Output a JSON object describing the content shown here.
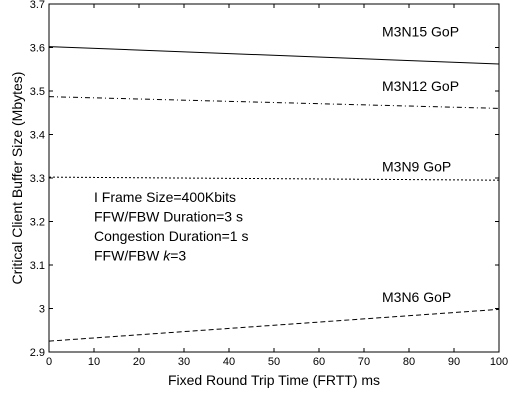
{
  "chart_data": {
    "type": "line",
    "title": "",
    "xlabel": "Fixed Round Trip Time (FRTT) ms",
    "ylabel": "Critical Client Buffer Size (Mbytes)",
    "xlim": [
      0,
      100
    ],
    "ylim": [
      2.9,
      3.7
    ],
    "xticks": [
      0,
      10,
      20,
      30,
      40,
      50,
      60,
      70,
      80,
      90,
      100
    ],
    "yticks": [
      2.9,
      3,
      3.1,
      3.2,
      3.3,
      3.4,
      3.5,
      3.6,
      3.7
    ],
    "ytick_labels": [
      "2.9",
      "3",
      "3.1",
      "3.2",
      "3.3",
      "3.4",
      "3.5",
      "3.6",
      "3.7"
    ],
    "grid": false,
    "legend": "none",
    "series": [
      {
        "name": "M3N15 GoP",
        "style": "solid",
        "x": [
          0,
          100
        ],
        "y": [
          3.602,
          3.562
        ],
        "label_x": 74,
        "label_y": 3.625
      },
      {
        "name": "M3N12 GoP",
        "style": "dashdot",
        "x": [
          0,
          100
        ],
        "y": [
          3.487,
          3.46
        ],
        "label_x": 74,
        "label_y": 3.5
      },
      {
        "name": "M3N9 GoP",
        "style": "dotted",
        "x": [
          0,
          100
        ],
        "y": [
          3.302,
          3.295
        ],
        "label_x": 74,
        "label_y": 3.315
      },
      {
        "name": "M3N6 GoP",
        "style": "dashed",
        "x": [
          0,
          100
        ],
        "y": [
          2.925,
          2.998
        ],
        "label_x": 74,
        "label_y": 3.015
      }
    ],
    "annotations": [
      {
        "text": "I Frame Size=400Kbits",
        "x": 10,
        "y": 3.245
      },
      {
        "text": "FFW/FBW Duration=3 s",
        "x": 10,
        "y": 3.2
      },
      {
        "text": "Congestion Duration=1 s",
        "x": 10,
        "y": 3.155
      },
      {
        "text": "FFW/FBW k=3",
        "x": 10,
        "y": 3.11,
        "italic_suffix": "k",
        "prefix": "FFW/FBW ",
        "suffix": "=3"
      }
    ]
  }
}
